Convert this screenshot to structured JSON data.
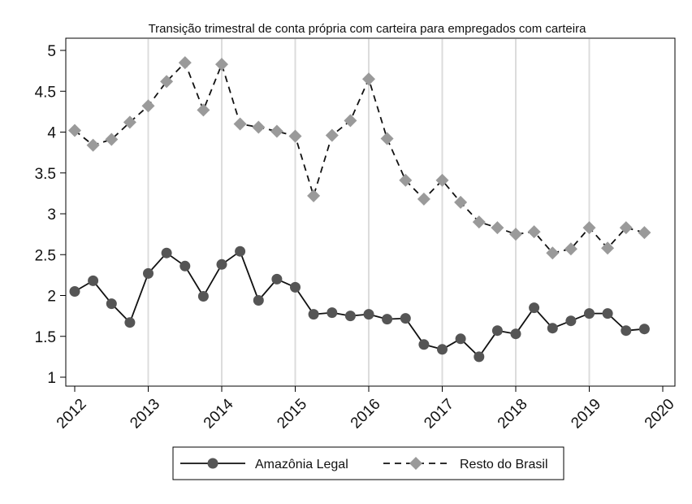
{
  "chart_data": {
    "type": "line",
    "title": "Transição trimestral de conta própria com carteira para empregados com carteira",
    "xlabel": "",
    "ylabel": "",
    "xlim": [
      2012,
      2020
    ],
    "ylim": [
      1,
      5
    ],
    "x_ticks": [
      "2012",
      "2013",
      "2014",
      "2015",
      "2016",
      "2017",
      "2018",
      "2019",
      "2020"
    ],
    "y_ticks": [
      "1",
      "1.5",
      "2",
      "2.5",
      "3",
      "3.5",
      "4",
      "4.5",
      "5"
    ],
    "grid": "vertical",
    "legend_position": "bottom",
    "x": [
      2012.0,
      2012.25,
      2012.5,
      2012.75,
      2013.0,
      2013.25,
      2013.5,
      2013.75,
      2014.0,
      2014.25,
      2014.5,
      2014.75,
      2015.0,
      2015.25,
      2015.5,
      2015.75,
      2016.0,
      2016.25,
      2016.5,
      2016.75,
      2017.0,
      2017.25,
      2017.5,
      2017.75,
      2018.0,
      2018.25,
      2018.5,
      2018.75,
      2019.0,
      2019.25,
      2019.5,
      2019.75
    ],
    "series": [
      {
        "name": "Amazônia Legal",
        "color": "#555555",
        "line_style": "solid",
        "marker": "circle",
        "values": [
          2.05,
          2.18,
          1.9,
          1.67,
          2.27,
          2.52,
          2.36,
          1.99,
          2.38,
          2.54,
          1.94,
          2.2,
          2.1,
          1.77,
          1.79,
          1.75,
          1.77,
          1.71,
          1.72,
          1.4,
          1.34,
          1.47,
          1.25,
          1.57,
          1.53,
          1.85,
          1.6,
          1.69,
          1.78,
          1.78,
          1.57,
          1.59
        ]
      },
      {
        "name": "Resto do Brasil",
        "color": "#9a9a9a",
        "line_style": "dashed",
        "marker": "diamond",
        "values": [
          4.02,
          3.84,
          3.91,
          4.12,
          4.32,
          4.62,
          4.85,
          4.27,
          4.83,
          4.1,
          4.06,
          4.01,
          3.95,
          3.22,
          3.96,
          4.14,
          4.65,
          3.92,
          3.41,
          3.18,
          3.41,
          3.14,
          2.9,
          2.83,
          2.75,
          2.78,
          2.52,
          2.57,
          2.83,
          2.58,
          2.83,
          2.77
        ]
      }
    ]
  }
}
